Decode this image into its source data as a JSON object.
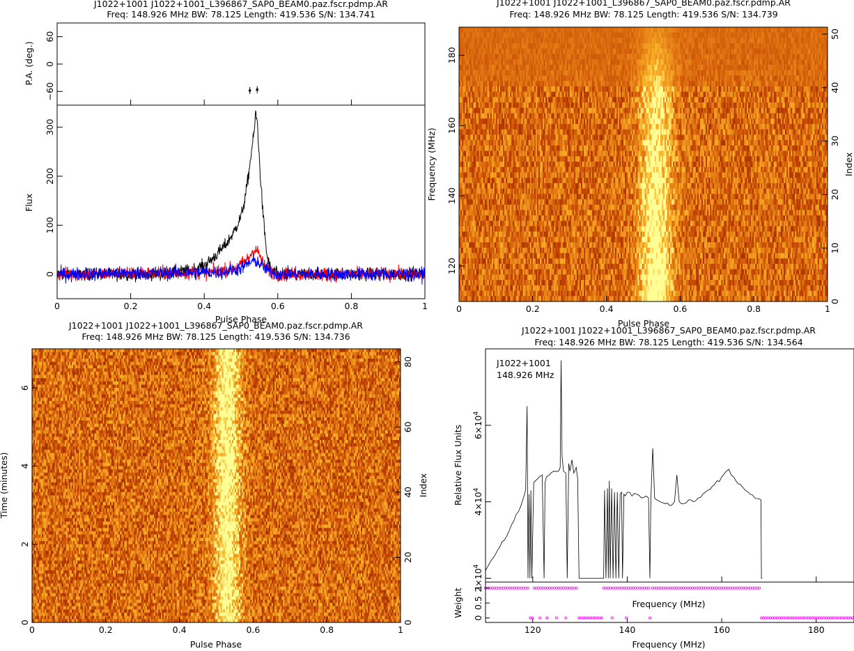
{
  "chart_data": [
    {
      "id": "profile",
      "type": "line",
      "title": "J1022+1001 J1022+1001_L396867_SAP0_BEAM0.paz.fscr.pdmp.AR",
      "subtitle": "Freq: 148.926 MHz BW: 78.125 Length: 419.536 S/N: 134.741",
      "xlabel": "Pulse Phase",
      "xlim": [
        0,
        1
      ],
      "xticks": [
        "0",
        "0.2",
        "0.4",
        "0.6",
        "0.8",
        "1"
      ],
      "pa_panel": {
        "ylabel": "P.A. (deg.)",
        "ylim": [
          -90,
          90
        ],
        "yticks": [
          "−60",
          "0",
          "60"
        ],
        "points": [
          {
            "x": 0.524,
            "y": -58
          },
          {
            "x": 0.544,
            "y": -56
          }
        ]
      },
      "flux_panel": {
        "ylabel": "Flux",
        "ylim": [
          -50,
          345
        ],
        "yticks": [
          "0",
          "100",
          "200",
          "300"
        ],
        "series": [
          {
            "color": "#000000",
            "x": [
              0.0,
              0.28,
              0.32,
              0.36,
              0.4,
              0.42,
              0.44,
              0.46,
              0.48,
              0.5,
              0.51,
              0.52,
              0.53,
              0.535,
              0.54,
              0.545,
              0.55,
              0.56,
              0.57,
              0.58,
              0.6,
              1.0
            ],
            "y": [
              0,
              0,
              3,
              8,
              18,
              30,
              45,
              62,
              85,
              118,
              150,
              200,
              260,
              285,
              330,
              305,
              230,
              120,
              40,
              10,
              0,
              0
            ]
          },
          {
            "color": "#ff0000",
            "x": [
              0.0,
              0.4,
              0.44,
              0.48,
              0.5,
              0.52,
              0.53,
              0.54,
              0.55,
              0.56,
              0.58,
              0.6,
              1.0
            ],
            "y": [
              0,
              3,
              6,
              12,
              20,
              32,
              45,
              52,
              40,
              20,
              6,
              0,
              0
            ]
          },
          {
            "color": "#0000ff",
            "x": [
              0.0,
              0.45,
              0.5,
              0.52,
              0.54,
              0.56,
              0.58,
              0.6,
              1.0
            ],
            "y": [
              0,
              4,
              12,
              22,
              28,
              15,
              5,
              0,
              0
            ]
          }
        ]
      }
    },
    {
      "id": "freq-phase",
      "type": "heatmap",
      "title": "J1022+1001 J1022+1001_L396867_SAP0_BEAM0.paz.fscr.pdmp.AR",
      "subtitle": "Freq: 148.926 MHz BW: 78.125 Length: 419.536 S/N: 134.739",
      "xlabel": "Pulse Phase",
      "ylabel": "Frequency (MHz)",
      "ylabel_right": "Index",
      "xlim": [
        0,
        1
      ],
      "ylim": [
        109.9,
        188.0
      ],
      "xticks": [
        "0",
        "0.2",
        "0.4",
        "0.6",
        "0.8",
        "1"
      ],
      "yticks": [
        "120",
        "140",
        "160",
        "180"
      ],
      "yticks_right": [
        "0",
        "10",
        "20",
        "30",
        "40",
        "50"
      ],
      "pulse_center": 0.535,
      "pulse_width": 0.03,
      "bright_low": 0.7,
      "bright_high": 0.4
    },
    {
      "id": "time-phase",
      "type": "heatmap",
      "title": "J1022+1001 J1022+1001_L396867_SAP0_BEAM0.paz.fscr.pdmp.AR",
      "subtitle": "Freq: 148.926 MHz BW: 78.125 Length: 419.536 S/N: 134.736",
      "xlabel": "Pulse Phase",
      "ylabel": "Time (minutes)",
      "ylabel_right": "Index",
      "xlim": [
        0,
        1
      ],
      "ylim": [
        0,
        7.0
      ],
      "xticks": [
        "0",
        "0.2",
        "0.4",
        "0.6",
        "0.8",
        "1"
      ],
      "yticks": [
        "0",
        "2",
        "4",
        "6"
      ],
      "yticks_right": [
        "0",
        "20",
        "40",
        "60",
        "80"
      ],
      "pulse_center": 0.53,
      "pulse_width": 0.025,
      "bright_low": 0.6,
      "bright_high": 0.6
    },
    {
      "id": "bandpass",
      "type": "line",
      "title": "J1022+1001 J1022+1001_L396867_SAP0_BEAM0.paz.fscr.pdmp.AR",
      "subtitle": "Freq: 148.926 MHz BW: 78.125 Length: 419.536 S/N: 134.564",
      "annotation": [
        "J1022+1001",
        "148.926 MHz"
      ],
      "xlabel": "Frequency (MHz)",
      "inner_xlabel": "Frequency (MHz)",
      "xlim": [
        110,
        188
      ],
      "xticks": [
        "120",
        "140",
        "160",
        "180"
      ],
      "flux_panel": {
        "ylabel": "Relative Flux Units",
        "ylim": [
          19000,
          80000
        ],
        "ytick_values": [
          20000,
          40000,
          60000
        ],
        "ytick_mantissa": [
          "2×10",
          "4×10",
          "6×10"
        ],
        "ytick_exp": "4",
        "x": [
          110,
          112,
          114,
          116,
          117.5,
          118.5,
          118.8,
          119.0,
          119.2,
          119.4,
          119.6,
          119.8,
          120.2,
          121,
          122,
          122.4,
          122.6,
          122.9,
          123.5,
          124.5,
          125.5,
          125.8,
          126.0,
          126.2,
          126.5,
          127.0,
          127.3,
          127.6,
          127.9,
          128.3,
          128.7,
          129.2,
          129.5,
          129.8,
          130.0,
          135.0,
          135.2,
          135.5,
          135.8,
          136.0,
          136.2,
          136.4,
          136.7,
          137.0,
          137.3,
          137.6,
          137.9,
          138.2,
          138.5,
          138.8,
          139.0,
          139.3,
          139.6,
          140,
          141,
          142,
          143,
          144,
          144.5,
          144.8,
          145.0,
          145.4,
          145.8,
          146.2,
          147,
          148,
          149,
          150,
          150.5,
          151,
          152,
          153,
          154,
          155,
          156,
          157,
          158,
          159,
          160,
          161,
          161.5,
          162,
          163,
          164,
          165,
          166,
          167,
          168.3,
          168.4,
          168.6
        ],
        "y": [
          22000,
          26000,
          30000,
          35000,
          39000,
          43000,
          65000,
          20000,
          42000,
          20000,
          43000,
          20000,
          45000,
          46000,
          47000,
          20000,
          45000,
          46500,
          47000,
          48000,
          48000,
          49000,
          77000,
          52000,
          48000,
          47500,
          20000,
          50000,
          48000,
          51000,
          47500,
          49000,
          46000,
          20000,
          20000,
          20000,
          43000,
          20000,
          43500,
          20000,
          45500,
          20000,
          43500,
          20000,
          42500,
          20000,
          42500,
          20000,
          42000,
          42500,
          20000,
          42000,
          41500,
          42500,
          41500,
          42000,
          41000,
          41500,
          41000,
          20000,
          41000,
          54000,
          41000,
          40500,
          40000,
          39500,
          39000,
          40000,
          47000,
          40000,
          39500,
          40500,
          40000,
          41000,
          42000,
          43000,
          44000,
          45500,
          46500,
          48000,
          48500,
          47000,
          45500,
          44500,
          43000,
          42000,
          41000,
          40500,
          20000,
          20000
        ]
      },
      "weight_panel": {
        "ylabel": "Weight",
        "ylim": [
          -0.15,
          1.2
        ],
        "yticks": [
          "0",
          "0.5",
          "1"
        ],
        "color": "#ff00ff",
        "ones_ranges": [
          [
            110,
            119.4
          ],
          [
            120.3,
            129.5
          ],
          [
            135,
            136.7
          ],
          [
            137,
            144.7
          ],
          [
            145.3,
            168.3
          ]
        ],
        "zero_ranges": [
          [
            119.5,
            120.3
          ],
          [
            121.5,
            121.5
          ],
          [
            123,
            123
          ],
          [
            125,
            125
          ],
          [
            127,
            127
          ],
          [
            129.8,
            134.9
          ],
          [
            136.8,
            136.9
          ],
          [
            139.8,
            139.8
          ],
          [
            144.8,
            145.2
          ],
          [
            168.4,
            188
          ]
        ]
      }
    }
  ]
}
